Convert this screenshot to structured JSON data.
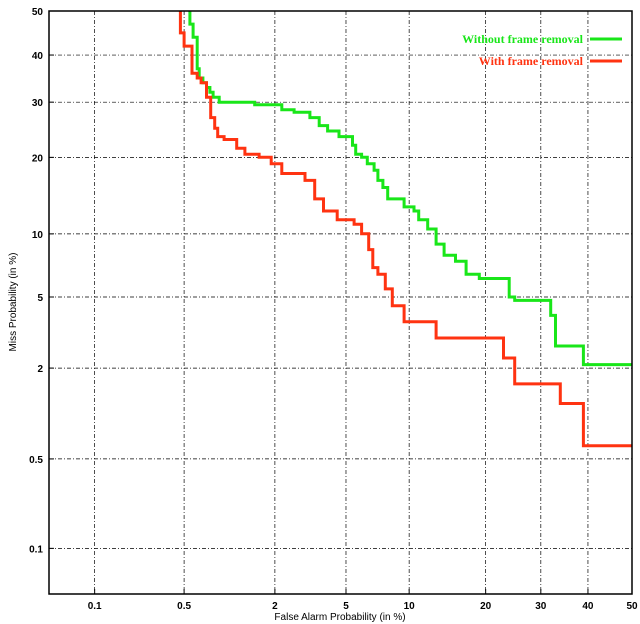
{
  "chart_data": {
    "type": "line",
    "title": "",
    "xlabel": "False Alarm Probability (in %)",
    "ylabel": "Miss Probability (in %)",
    "scale": "normal-deviate (DET)",
    "xlim": [
      0.04,
      50
    ],
    "ylim": [
      0.04,
      50
    ],
    "grid": true,
    "legend_position": "top-right",
    "xticks": [
      0.1,
      0.5,
      2,
      5,
      10,
      20,
      30,
      40,
      50
    ],
    "yticks": [
      0.1,
      0.5,
      2,
      5,
      10,
      20,
      30,
      40,
      50
    ],
    "series": [
      {
        "name": "Without frame removal",
        "color": "#19e619",
        "points": [
          [
            0.55,
            50
          ],
          [
            0.55,
            47
          ],
          [
            0.58,
            47
          ],
          [
            0.58,
            44
          ],
          [
            0.62,
            44
          ],
          [
            0.62,
            37
          ],
          [
            0.64,
            37
          ],
          [
            0.64,
            35
          ],
          [
            0.68,
            35
          ],
          [
            0.68,
            34
          ],
          [
            0.72,
            34
          ],
          [
            0.72,
            33
          ],
          [
            0.76,
            33
          ],
          [
            0.76,
            32
          ],
          [
            0.8,
            32
          ],
          [
            0.8,
            31
          ],
          [
            0.88,
            31
          ],
          [
            0.88,
            30
          ],
          [
            1.5,
            30
          ],
          [
            1.5,
            29.5
          ],
          [
            2.2,
            29.5
          ],
          [
            2.2,
            28.5
          ],
          [
            2.6,
            28.5
          ],
          [
            2.6,
            28
          ],
          [
            3.2,
            28
          ],
          [
            3.2,
            27
          ],
          [
            3.6,
            27
          ],
          [
            3.6,
            25.5
          ],
          [
            4.0,
            25.5
          ],
          [
            4.0,
            24.5
          ],
          [
            4.6,
            24.5
          ],
          [
            4.6,
            23.5
          ],
          [
            5.4,
            23.5
          ],
          [
            5.4,
            22
          ],
          [
            5.6,
            22
          ],
          [
            5.6,
            20.5
          ],
          [
            6.0,
            20.5
          ],
          [
            6.0,
            20
          ],
          [
            6.4,
            20
          ],
          [
            6.4,
            19
          ],
          [
            6.9,
            19
          ],
          [
            6.9,
            18
          ],
          [
            7.2,
            18
          ],
          [
            7.2,
            16.5
          ],
          [
            7.6,
            16.5
          ],
          [
            7.6,
            15.5
          ],
          [
            8.0,
            15.5
          ],
          [
            8.0,
            14
          ],
          [
            9.5,
            14
          ],
          [
            9.5,
            13
          ],
          [
            10.5,
            13
          ],
          [
            10.5,
            12.5
          ],
          [
            11.0,
            12.5
          ],
          [
            11.0,
            11.5
          ],
          [
            12.0,
            11.5
          ],
          [
            12.0,
            10.5
          ],
          [
            13.0,
            10.5
          ],
          [
            13.0,
            9.0
          ],
          [
            14.0,
            9.0
          ],
          [
            14.0,
            8.0
          ],
          [
            15.5,
            8.0
          ],
          [
            15.5,
            7.5
          ],
          [
            17.0,
            7.5
          ],
          [
            17.0,
            6.5
          ],
          [
            19.0,
            6.5
          ],
          [
            19.0,
            6.2
          ],
          [
            24.0,
            6.2
          ],
          [
            24.0,
            5.0
          ],
          [
            25.0,
            5.0
          ],
          [
            25.0,
            4.8
          ],
          [
            32.0,
            4.8
          ],
          [
            32.0,
            4.0
          ],
          [
            33.0,
            4.0
          ],
          [
            33.0,
            2.7
          ],
          [
            39.0,
            2.7
          ],
          [
            39.0,
            2.1
          ],
          [
            50,
            2.1
          ]
        ]
      },
      {
        "name": "With frame removal",
        "color": "#ff3311",
        "points": [
          [
            0.47,
            50
          ],
          [
            0.47,
            45
          ],
          [
            0.5,
            45
          ],
          [
            0.5,
            42
          ],
          [
            0.57,
            42
          ],
          [
            0.57,
            36
          ],
          [
            0.62,
            36
          ],
          [
            0.62,
            35
          ],
          [
            0.66,
            35
          ],
          [
            0.66,
            34
          ],
          [
            0.72,
            34
          ],
          [
            0.72,
            31
          ],
          [
            0.77,
            31
          ],
          [
            0.77,
            27
          ],
          [
            0.82,
            27
          ],
          [
            0.82,
            25
          ],
          [
            0.86,
            25
          ],
          [
            0.86,
            23.5
          ],
          [
            0.95,
            23.5
          ],
          [
            0.95,
            23
          ],
          [
            1.15,
            23
          ],
          [
            1.15,
            21.5
          ],
          [
            1.3,
            21.5
          ],
          [
            1.3,
            20.5
          ],
          [
            1.6,
            20.5
          ],
          [
            1.6,
            20
          ],
          [
            1.9,
            20
          ],
          [
            1.9,
            19
          ],
          [
            2.2,
            19
          ],
          [
            2.2,
            17.5
          ],
          [
            3.0,
            17.5
          ],
          [
            3.0,
            16.5
          ],
          [
            3.4,
            16.5
          ],
          [
            3.4,
            14
          ],
          [
            3.8,
            14
          ],
          [
            3.8,
            12.5
          ],
          [
            4.5,
            12.5
          ],
          [
            4.5,
            11.5
          ],
          [
            5.5,
            11.5
          ],
          [
            5.5,
            11
          ],
          [
            6.0,
            11
          ],
          [
            6.0,
            10
          ],
          [
            6.5,
            10
          ],
          [
            6.5,
            8.5
          ],
          [
            6.8,
            8.5
          ],
          [
            6.8,
            7.0
          ],
          [
            7.2,
            7.0
          ],
          [
            7.2,
            6.5
          ],
          [
            7.8,
            6.5
          ],
          [
            7.8,
            5.5
          ],
          [
            8.4,
            5.5
          ],
          [
            8.4,
            4.5
          ],
          [
            9.5,
            4.5
          ],
          [
            9.5,
            3.7
          ],
          [
            13.0,
            3.7
          ],
          [
            13.0,
            3.0
          ],
          [
            23.0,
            3.0
          ],
          [
            23.0,
            2.3
          ],
          [
            25.0,
            2.3
          ],
          [
            25.0,
            1.6
          ],
          [
            34.0,
            1.6
          ],
          [
            34.0,
            1.2
          ],
          [
            39.0,
            1.2
          ],
          [
            39.0,
            0.62
          ],
          [
            50,
            0.62
          ]
        ]
      }
    ]
  }
}
